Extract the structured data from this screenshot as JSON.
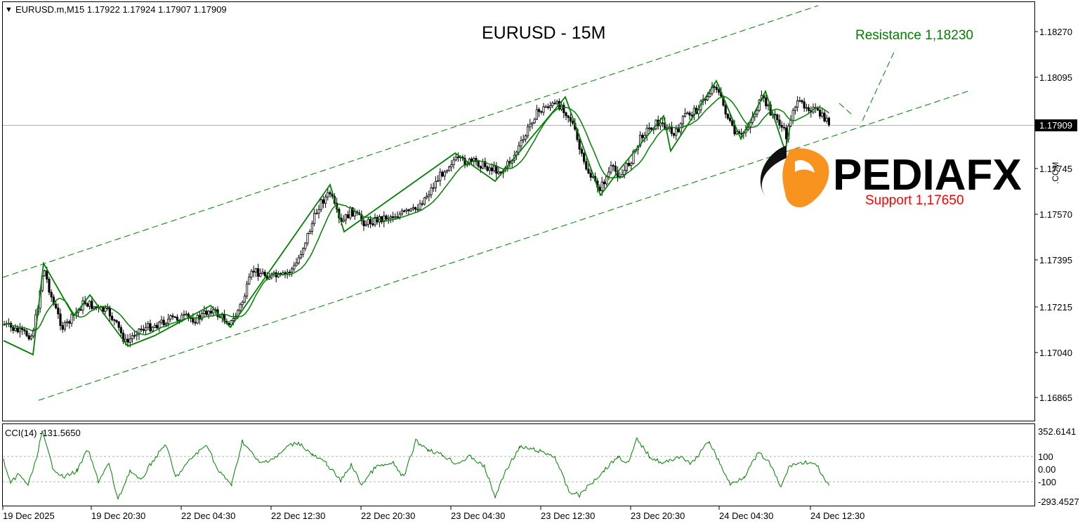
{
  "header": {
    "symbol_info": "EURUSD.m,M15  1.17922 1.17924 1.17907 1.17909"
  },
  "chart_title": "EURUSD - 15M",
  "annotations": {
    "resistance": "Resistance 1,18230",
    "support": "Support 1,17650"
  },
  "logo": {
    "text": "PEDIAFX",
    "suffix": ".COM"
  },
  "colors": {
    "resistance": "#008000",
    "support": "#ff0000",
    "ma": "#008000",
    "channel": "#008000",
    "candle": "#000000",
    "logo_orange": "#f7931e",
    "cci": "#008000"
  },
  "price_axis": {
    "labels": [
      "1.18270",
      "1.18095",
      "1.17745",
      "1.17570",
      "1.17395",
      "1.17215",
      "1.17040",
      "1.16865"
    ],
    "current": "1.17909"
  },
  "time_axis": {
    "labels": [
      "19 Dec 2025",
      "19 Dec 20:30",
      "22 Dec 04:30",
      "22 Dec 12:30",
      "22 Dec 20:30",
      "23 Dec 04:30",
      "23 Dec 12:30",
      "23 Dec 20:30",
      "24 Dec 04:30",
      "24 Dec 12:30"
    ]
  },
  "cci_panel": {
    "label": "CCI(14) -131.5650",
    "labels": [
      "352.6141",
      "100",
      "0.00",
      "-100",
      "-293.4527"
    ]
  },
  "chart_data": {
    "type": "line",
    "title": "EURUSD - 15M",
    "x": [
      "19 Dec 2025",
      "19 Dec 20:30",
      "22 Dec 04:30",
      "22 Dec 12:30",
      "22 Dec 20:30",
      "23 Dec 04:30",
      "23 Dec 12:30",
      "23 Dec 20:30",
      "24 Dec 04:30",
      "24 Dec 12:30"
    ],
    "series": [
      {
        "name": "EURUSD.m,M15",
        "values": [
          1.1714,
          1.1711,
          1.172,
          1.1764,
          1.176,
          1.1775,
          1.1778,
          1.1795,
          1.1792,
          1.1791
        ]
      }
    ],
    "levels": [
      {
        "name": "Resistance 1,18230",
        "value": 1.1823
      },
      {
        "name": "Support 1,17650",
        "value": 1.1765
      }
    ],
    "ylim": [
      1.168,
      1.184
    ],
    "cci": {
      "label": "CCI(14)",
      "last": -131.565,
      "ylim": [
        -293.4527,
        352.6141
      ]
    },
    "grid": false
  }
}
